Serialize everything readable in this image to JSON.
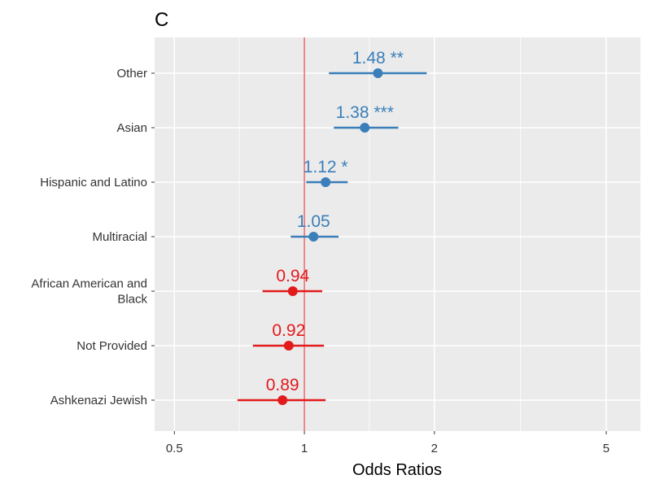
{
  "chart_data": {
    "type": "forest",
    "panel_label": "C",
    "xlabel": "Odds Ratios",
    "x_scale": "log",
    "xlim": [
      0.45,
      6.0
    ],
    "x_ticks": [
      0.5,
      1,
      2,
      5
    ],
    "x_tick_labels": [
      "0.5",
      "1",
      "2",
      "5"
    ],
    "reference_line": 1,
    "grid": true,
    "colors": {
      "positive": "#3a7fba",
      "negative": "#e31a1c",
      "reference": "#e31a1c",
      "panel": "#ebebeb",
      "grid": "#ffffff"
    },
    "rows": [
      {
        "category": "Other",
        "estimate": 1.48,
        "ci_low": 1.14,
        "ci_high": 1.92,
        "label": "1.48 **",
        "direction": "positive"
      },
      {
        "category": "Asian",
        "estimate": 1.38,
        "ci_low": 1.17,
        "ci_high": 1.65,
        "label": "1.38 ***",
        "direction": "positive"
      },
      {
        "category": "Hispanic and Latino",
        "estimate": 1.12,
        "ci_low": 1.01,
        "ci_high": 1.26,
        "label": "1.12 *",
        "direction": "positive"
      },
      {
        "category": "Multiracial",
        "estimate": 1.05,
        "ci_low": 0.93,
        "ci_high": 1.2,
        "label": "1.05",
        "direction": "positive"
      },
      {
        "category": "African American and Black",
        "category_lines": [
          "African American and",
          "Black"
        ],
        "estimate": 0.94,
        "ci_low": 0.8,
        "ci_high": 1.1,
        "label": "0.94",
        "direction": "negative"
      },
      {
        "category": "Not Provided",
        "estimate": 0.92,
        "ci_low": 0.76,
        "ci_high": 1.11,
        "label": "0.92",
        "direction": "negative"
      },
      {
        "category": "Ashkenazi Jewish",
        "estimate": 0.89,
        "ci_low": 0.7,
        "ci_high": 1.12,
        "label": "0.89",
        "direction": "negative"
      }
    ]
  }
}
